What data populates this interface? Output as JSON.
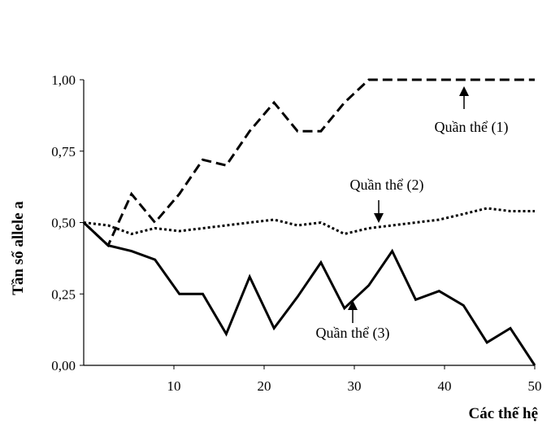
{
  "chart_data": {
    "type": "line",
    "title": "",
    "xlabel": "Các thế hệ",
    "ylabel": "Tần số allele a",
    "xlim": [
      0,
      50
    ],
    "ylim": [
      0,
      1
    ],
    "x_ticks": [
      10,
      20,
      30,
      40,
      50
    ],
    "x_tick_labels": [
      "10",
      "20",
      "30",
      "40",
      "50"
    ],
    "y_ticks": [
      0,
      0.25,
      0.5,
      0.75,
      1
    ],
    "y_tick_labels": [
      "0,00",
      "0,25",
      "0,50",
      "0,75",
      "1,00"
    ],
    "grid": false,
    "legend": "none",
    "series": [
      {
        "name": "Quần thể (1)",
        "style": "dashed",
        "color": "#000000",
        "x": [
          0,
          2.7,
          5.3,
          7.9,
          10.6,
          13.2,
          15.8,
          18.4,
          21.1,
          23.7,
          26.3,
          28.9,
          31.6,
          34.2,
          36.8,
          39.4,
          42.1,
          44.7,
          47.3,
          50
        ],
        "y": [
          0.5,
          0.42,
          0.6,
          0.5,
          0.6,
          0.72,
          0.7,
          0.82,
          0.92,
          0.82,
          0.82,
          0.92,
          1.0,
          1.0,
          1.0,
          1.0,
          1.0,
          1.0,
          1.0,
          1.0
        ]
      },
      {
        "name": "Quần thể (2)",
        "style": "dotted",
        "color": "#000000",
        "x": [
          0,
          2.7,
          5.3,
          7.9,
          10.6,
          13.2,
          15.8,
          18.4,
          21.1,
          23.7,
          26.3,
          28.9,
          31.6,
          34.2,
          36.8,
          39.4,
          42.1,
          44.7,
          47.3,
          50
        ],
        "y": [
          0.5,
          0.49,
          0.46,
          0.48,
          0.47,
          0.48,
          0.49,
          0.5,
          0.51,
          0.49,
          0.5,
          0.46,
          0.48,
          0.49,
          0.5,
          0.51,
          0.53,
          0.55,
          0.54,
          0.54
        ]
      },
      {
        "name": "Quần thể (3)",
        "style": "solid",
        "color": "#000000",
        "x": [
          0,
          2.7,
          5.3,
          7.9,
          10.6,
          13.2,
          15.8,
          18.4,
          21.1,
          23.7,
          26.3,
          28.9,
          31.6,
          34.2,
          36.8,
          39.4,
          42.1,
          44.7,
          47.3,
          50
        ],
        "y": [
          0.5,
          0.42,
          0.4,
          0.37,
          0.25,
          0.25,
          0.11,
          0.31,
          0.13,
          0.24,
          0.36,
          0.2,
          0.28,
          0.4,
          0.23,
          0.26,
          0.21,
          0.08,
          0.13,
          0.0
        ]
      }
    ],
    "annotations": [
      {
        "text": "Quần thể (1)",
        "target_x": 42,
        "target_y": 1.0
      },
      {
        "text": "Quần thể (2)",
        "target_x": 32.5,
        "target_y": 0.49
      },
      {
        "text": "Quần thể (3)",
        "target_x": 29.5,
        "target_y": 0.2
      }
    ]
  }
}
